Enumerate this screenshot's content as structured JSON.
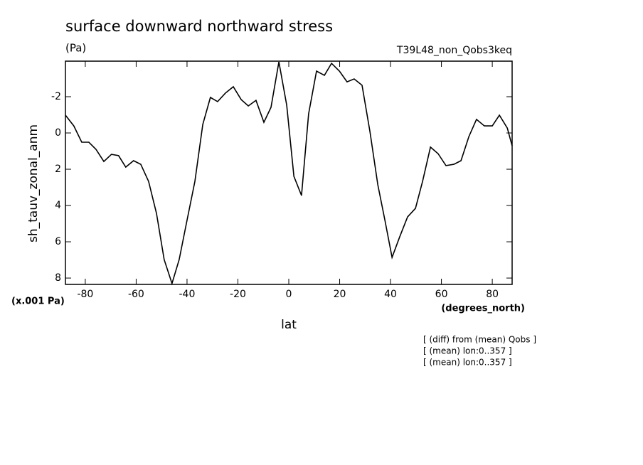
{
  "chart_data": {
    "type": "line",
    "title": "surface downward northward stress",
    "subtitle": "(Pa)",
    "experiment": "T39L48_non_Qobs3keq",
    "y_label": "sh_tauv_zonal_anm",
    "y_unit": "(x.001 Pa)",
    "x_unit": "(degrees_north)",
    "x_label": "lat",
    "notes": [
      "[ (diff) from (mean) Qobs ]",
      "[ (mean) lon:0..357 ]",
      "[ (mean) lon:0..357 ]"
    ],
    "x": [
      -87.8,
      -84.5,
      -81.4,
      -78.6,
      -75.8,
      -72.7,
      -69.7,
      -66.9,
      -64.1,
      -61,
      -58.2,
      -55.1,
      -52,
      -49,
      -45.9,
      -43.1,
      -40,
      -36.9,
      -33.8,
      -30.8,
      -28,
      -24.9,
      -21.8,
      -18.7,
      -15.9,
      -12.9,
      -9.8,
      -7,
      -3.9,
      -0.8,
      2,
      5,
      7.8,
      10.9,
      14,
      16.8,
      19.9,
      22.9,
      25.7,
      28.8,
      31.9,
      35,
      37.8,
      40.6,
      43.6,
      46.7,
      49.8,
      52.6,
      55.7,
      58.7,
      61.8,
      64.9,
      67.7,
      70.8,
      73.8,
      76.9,
      80,
      82.8,
      85.9,
      87.8
    ],
    "series": [
      {
        "name": "sh_tauv_zonal_anm",
        "color": "#000000",
        "values": [
          -0.98,
          -0.39,
          0.51,
          0.51,
          0.9,
          1.57,
          1.18,
          1.25,
          1.88,
          1.53,
          1.73,
          2.67,
          4.43,
          6.98,
          8.3,
          6.98,
          4.82,
          2.67,
          -0.47,
          -1.96,
          -1.73,
          -2.2,
          -2.55,
          -1.84,
          -1.49,
          -1.8,
          -0.59,
          -1.41,
          -3.92,
          -1.53,
          2.39,
          3.45,
          -1.06,
          -3.41,
          -3.18,
          -3.84,
          -3.41,
          -2.82,
          -2.98,
          -2.63,
          -0.08,
          2.86,
          4.82,
          6.86,
          5.73,
          4.63,
          4.16,
          2.67,
          0.78,
          1.14,
          1.8,
          1.73,
          1.53,
          0.2,
          -0.75,
          -0.39,
          -0.39,
          -0.98,
          -0.27,
          0.71
        ]
      }
    ],
    "xlim": [
      -87.8,
      87.8
    ],
    "xticks": [
      -80,
      -60,
      -40,
      -20,
      0,
      20,
      40,
      60,
      80
    ],
    "ylim": [
      -3.96,
      8.35
    ],
    "yticks": [
      -2,
      0,
      2,
      4,
      6,
      8
    ],
    "y_inverted": true
  }
}
